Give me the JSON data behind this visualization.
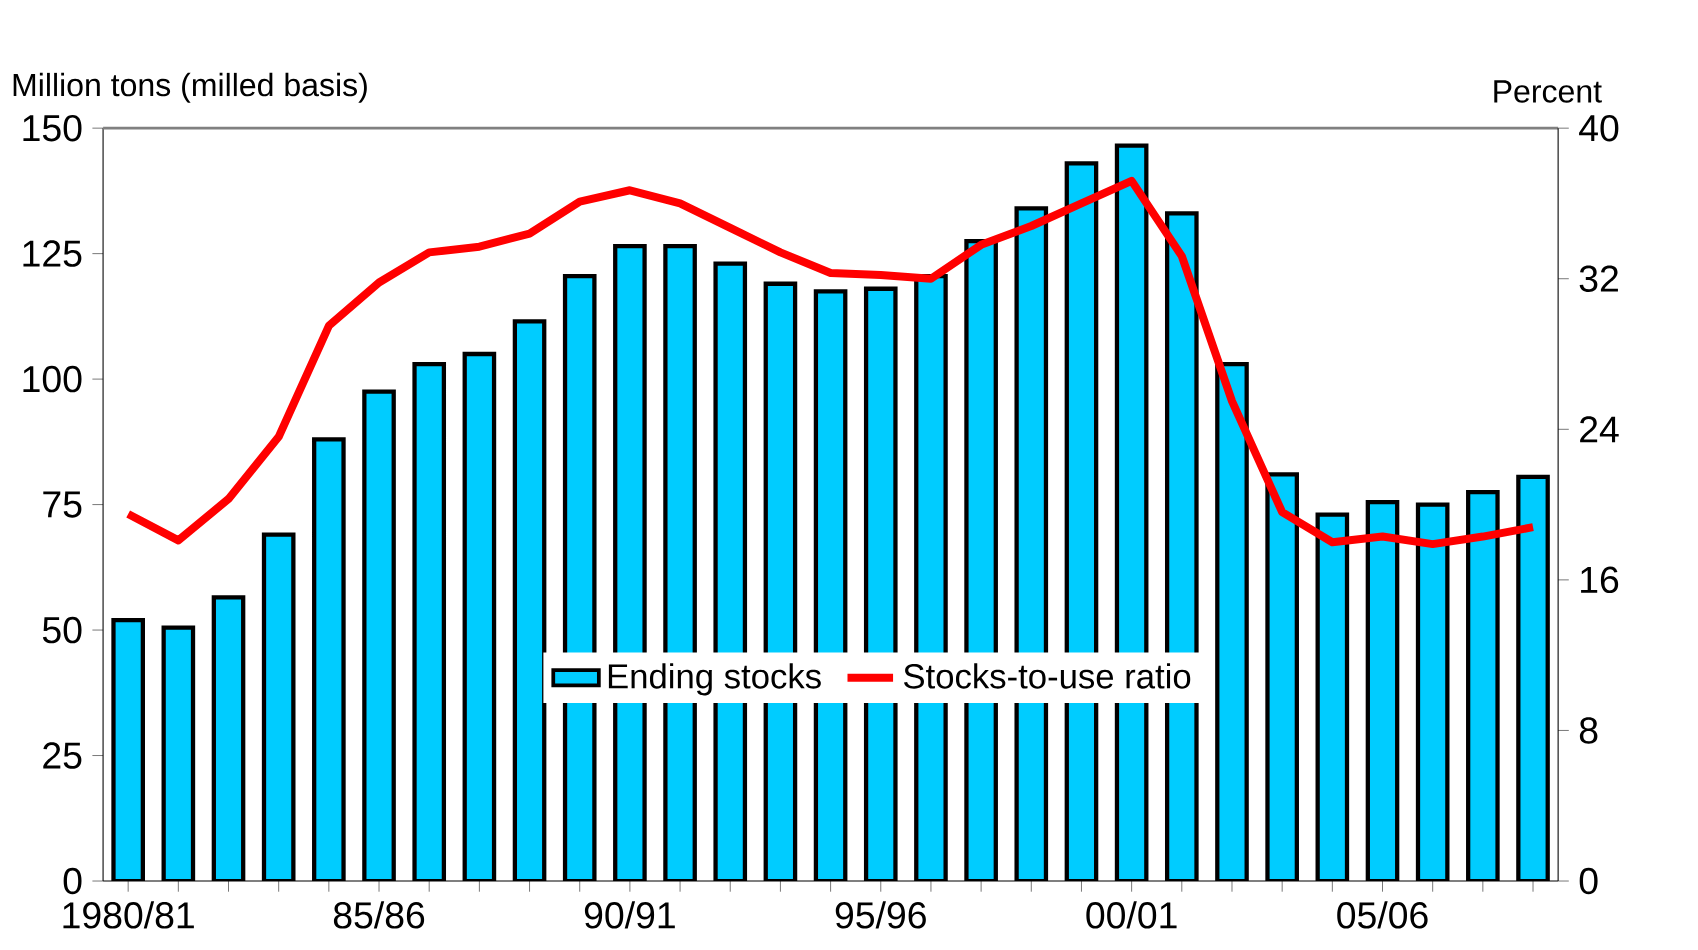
{
  "chart_data": {
    "type": "bar",
    "ylabel": "Million tons (milled basis)",
    "y2label": "Percent",
    "categories": [
      "1980/81",
      null,
      null,
      null,
      null,
      "85/86",
      null,
      null,
      null,
      null,
      "90/91",
      null,
      null,
      null,
      null,
      "95/96",
      null,
      null,
      null,
      null,
      "00/01",
      null,
      null,
      null,
      null,
      "05/06",
      null,
      null,
      null
    ],
    "series": [
      {
        "name": "Ending stocks",
        "color": "#00ccff",
        "values": [
          52,
          50.5,
          56.5,
          69,
          88,
          97.5,
          103,
          105,
          111.5,
          120.5,
          126.5,
          126.5,
          123,
          119,
          117.5,
          118,
          120.5,
          127.5,
          134,
          143,
          146.5,
          133,
          103,
          81,
          73,
          75.5,
          75,
          77.5,
          80.5
        ]
      },
      {
        "name": "Stocks-to-use ratio",
        "type": "line",
        "axis": "y2",
        "color": "#ff0000",
        "values": [
          19.5,
          18.1,
          20.3,
          23.6,
          29.5,
          31.8,
          33.4,
          33.7,
          34.4,
          36.1,
          36.7,
          36,
          34.7,
          33.4,
          32.3,
          32.2,
          32,
          33.8,
          34.8,
          36,
          37.2,
          33.2,
          25.5,
          19.6,
          18,
          18.3,
          17.9,
          18.3,
          18.8
        ]
      }
    ],
    "ylim": [
      0,
      150
    ],
    "yticks": [
      0,
      25,
      50,
      75,
      100,
      125,
      150
    ],
    "y2lim": [
      0,
      40
    ],
    "y2ticks": [
      0,
      8,
      16,
      24,
      32,
      40
    ],
    "legend": "bottom",
    "grid": false,
    "marker": "none",
    "line_style": "solid"
  }
}
